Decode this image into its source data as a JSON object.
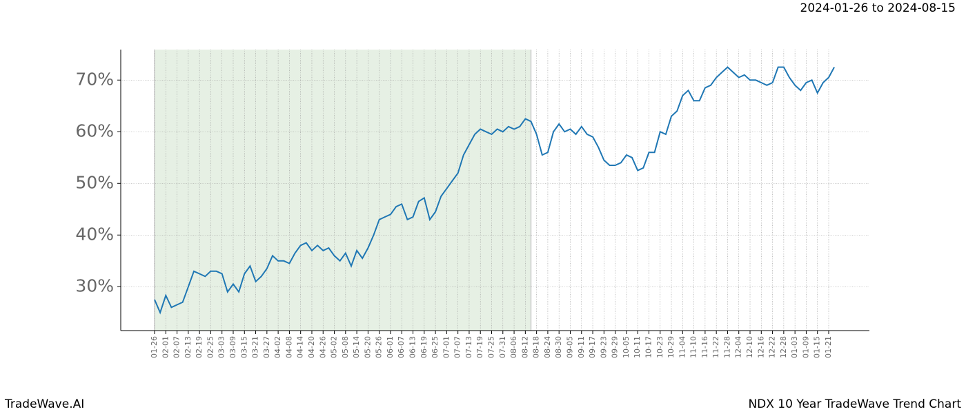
{
  "chart_data": {
    "type": "line",
    "date_range": "2024-01-26 to 2024-08-15",
    "brand": "TradeWave.AI",
    "title": "NDX 10 Year TradeWave Trend Chart",
    "categories": [
      "01-26",
      null,
      "02-01",
      null,
      "02-07",
      null,
      "02-13",
      null,
      "02-19",
      null,
      "02-25",
      null,
      "03-03",
      null,
      "03-09",
      null,
      "03-15",
      null,
      "03-21",
      null,
      "03-27",
      null,
      "04-02",
      null,
      "04-08",
      null,
      "04-14",
      null,
      "04-20",
      null,
      "04-26",
      null,
      "05-02",
      null,
      "05-08",
      null,
      "05-14",
      null,
      "05-20",
      null,
      "05-26",
      null,
      "06-01",
      null,
      "06-07",
      null,
      "06-13",
      null,
      "06-19",
      null,
      "06-25",
      null,
      "07-01",
      null,
      "07-07",
      null,
      "07-13",
      null,
      "07-19",
      null,
      "07-25",
      null,
      "07-31",
      null,
      "08-06",
      null,
      "08-12",
      null,
      "08-18",
      null,
      "08-24",
      null,
      "08-30",
      null,
      "09-05",
      null,
      "09-11",
      null,
      "09-17",
      null,
      "09-23",
      null,
      "09-29",
      null,
      "10-05",
      null,
      "10-11",
      null,
      "10-17",
      null,
      "10-23",
      null,
      "10-29",
      null,
      "11-04",
      null,
      "11-10",
      null,
      "11-16",
      null,
      "11-22",
      null,
      "11-28",
      null,
      "12-04",
      null,
      "12-10",
      null,
      "12-16",
      null,
      "12-22",
      null,
      "12-28",
      null,
      "01-03",
      null,
      "01-09",
      null,
      "01-15",
      null,
      "01-21",
      null
    ],
    "series": [
      {
        "color": "#1f77b4",
        "values": [
          27.5,
          25,
          28.3,
          26,
          26.5,
          27,
          30,
          33,
          32.5,
          32,
          33,
          33,
          32.5,
          29,
          30.5,
          29,
          32.5,
          34,
          31,
          32,
          33.5,
          36,
          35,
          35,
          34.5,
          36.5,
          38,
          38.5,
          37,
          38,
          37,
          37.5,
          36,
          35,
          36.5,
          34,
          37,
          35.5,
          37.5,
          40,
          43,
          43.5,
          44,
          45.5,
          46,
          43,
          43.5,
          46.5,
          47.2,
          43,
          44.5,
          47.5,
          49,
          50.5,
          52,
          55.5,
          57.5,
          59.5,
          60.5,
          60,
          59.5,
          60.5,
          60,
          61,
          60.5,
          61,
          62.5,
          62,
          59.5,
          55.5,
          56,
          60,
          61.5,
          60,
          60.5,
          59.5,
          61,
          59.5,
          59,
          57,
          54.5,
          53.5,
          53.5,
          54,
          55.5,
          55,
          52.5,
          53,
          56,
          56,
          60,
          59.5,
          63,
          64,
          67,
          68,
          66,
          66,
          68.5,
          69,
          70.5,
          71.5,
          72.5,
          71.5,
          70.5,
          71,
          70,
          70,
          69.5,
          69,
          69.5,
          72.5,
          72.5,
          70.5,
          69,
          68,
          69.5,
          70,
          67.5,
          69.5,
          70.5,
          72.5
        ]
      }
    ],
    "shade": [
      0,
      67
    ],
    "shade_color": "#e6f0e4",
    "ylim": [
      21.5,
      75.9
    ],
    "yticks": [
      {
        "value": 30,
        "label": "30%"
      },
      {
        "value": 40,
        "label": "40%"
      },
      {
        "value": 50,
        "label": "50%"
      },
      {
        "value": 60,
        "label": "60%"
      },
      {
        "value": 70,
        "label": "70%"
      }
    ],
    "grid": true
  }
}
